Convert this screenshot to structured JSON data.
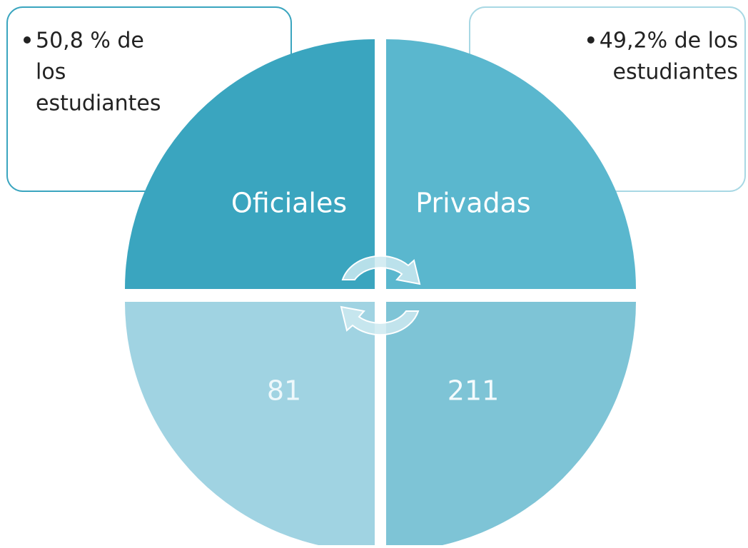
{
  "boxes": [
    {
      "lines": [
        "50,8 % de",
        "los",
        "estudiantes"
      ]
    },
    {
      "lines": [
        "49,2% de los",
        "estudiantes"
      ]
    }
  ],
  "quadrants": [
    {
      "label": "Oficiales"
    },
    {
      "label": "Privadas"
    },
    {
      "label": "81"
    },
    {
      "label": "211"
    }
  ]
}
